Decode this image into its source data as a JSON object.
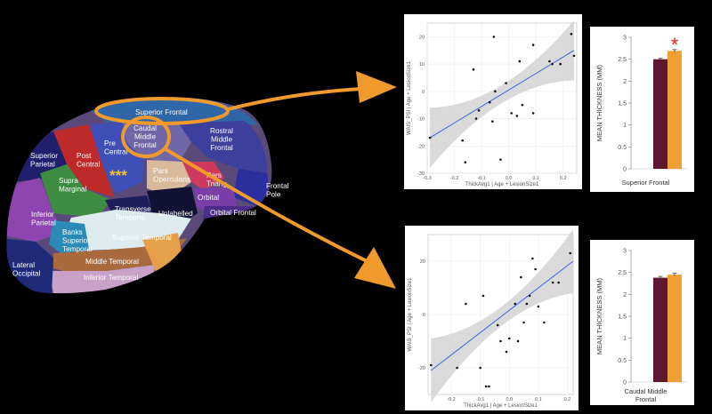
{
  "colors": {
    "arrow": "#F0992C",
    "bar_dark": "#5E1631",
    "bar_light": "#F0A030",
    "fit_line": "#3B63E0",
    "ci_band": "#D3D3D3",
    "star_red": "#E02020",
    "star_yellow": "#F4C430"
  },
  "brain": {
    "markers": [
      "***"
    ],
    "regions": [
      {
        "id": "superior-frontal",
        "lines": [
          "Superior Frontal"
        ]
      },
      {
        "id": "caudal-middle-frontal",
        "lines": [
          "Caudal",
          "Middle",
          "Frontal"
        ]
      },
      {
        "id": "rostral-middle-frontal",
        "lines": [
          "Rostral",
          "Middle",
          "Frontal"
        ]
      },
      {
        "id": "pre-central",
        "lines": [
          "Pre",
          "Central"
        ]
      },
      {
        "id": "post-central",
        "lines": [
          "Post",
          "Central"
        ]
      },
      {
        "id": "superior-parietal",
        "lines": [
          "Superior",
          "Parietal"
        ]
      },
      {
        "id": "supra-marginal",
        "lines": [
          "Supra",
          "Marginal"
        ]
      },
      {
        "id": "pars-opercularis",
        "lines": [
          "Pars",
          "Opercularis"
        ]
      },
      {
        "id": "pars-triangularis",
        "lines": [
          "Pars",
          "Triang"
        ]
      },
      {
        "id": "frontal-pole",
        "lines": [
          "Frontal",
          "Pole"
        ]
      },
      {
        "id": "orbital",
        "lines": [
          "Orbital"
        ]
      },
      {
        "id": "orbital-frontal",
        "lines": [
          "Orbital Frontal"
        ]
      },
      {
        "id": "transverse-temporal",
        "lines": [
          "Transverse",
          "Temporal"
        ]
      },
      {
        "id": "unlabelled",
        "lines": [
          "Unlabelled"
        ]
      },
      {
        "id": "inferior-parietal",
        "lines": [
          "Inferior",
          "Parietal"
        ]
      },
      {
        "id": "banks-superior-temporal",
        "lines": [
          "Banks",
          "Superior",
          "Temporal"
        ]
      },
      {
        "id": "superior-temporal",
        "lines": [
          "Superior Temporal"
        ]
      },
      {
        "id": "middle-temporal",
        "lines": [
          "Middle Temporal"
        ]
      },
      {
        "id": "lateral-occipital",
        "lines": [
          "Lateral",
          "Occipital"
        ]
      },
      {
        "id": "inferior-temporal",
        "lines": [
          "Inferior Temporal"
        ]
      }
    ]
  },
  "chart_data": [
    {
      "type": "scatter",
      "title": "",
      "xlabel": "ThickAvg1 | Age + LesionSize1",
      "ylabel": "WAIS_PSI | Age + LesionSize1",
      "xlim": [
        -0.3,
        0.25
      ],
      "ylim": [
        -30,
        25
      ],
      "xticks": [
        -0.3,
        -0.2,
        -0.1,
        0.0,
        0.1,
        0.2
      ],
      "xtick_labels": [
        "-0.3",
        "-0.2",
        "-0.1",
        "0.0",
        "0.1",
        "0.2"
      ],
      "yticks": [
        -30,
        -20,
        -10,
        0,
        10,
        20
      ],
      "ytick_labels": [
        "-30",
        "-20",
        "-10",
        "0",
        "10",
        "20"
      ],
      "grid": true,
      "fit_line": {
        "x": [
          -0.29,
          0.24
        ],
        "y": [
          -17,
          15
        ]
      },
      "points": [
        {
          "x": -0.29,
          "y": -17
        },
        {
          "x": -0.17,
          "y": -18
        },
        {
          "x": -0.16,
          "y": -26
        },
        {
          "x": -0.13,
          "y": 8
        },
        {
          "x": -0.12,
          "y": -10
        },
        {
          "x": -0.11,
          "y": -7
        },
        {
          "x": -0.07,
          "y": -4
        },
        {
          "x": -0.06,
          "y": -11
        },
        {
          "x": -0.055,
          "y": 20
        },
        {
          "x": -0.05,
          "y": 0
        },
        {
          "x": -0.03,
          "y": -25
        },
        {
          "x": -0.01,
          "y": 3
        },
        {
          "x": 0.01,
          "y": -8
        },
        {
          "x": 0.03,
          "y": -9
        },
        {
          "x": 0.04,
          "y": 11
        },
        {
          "x": 0.05,
          "y": -5
        },
        {
          "x": 0.09,
          "y": 17
        },
        {
          "x": 0.09,
          "y": -8
        },
        {
          "x": 0.15,
          "y": 11
        },
        {
          "x": 0.16,
          "y": 10
        },
        {
          "x": 0.19,
          "y": 10
        },
        {
          "x": 0.23,
          "y": 21
        },
        {
          "x": 0.24,
          "y": 13
        }
      ]
    },
    {
      "type": "bar",
      "title": "",
      "xlabel": "Superior Frontal",
      "ylabel": "MEAN THICKNESS (MM)",
      "ylim": [
        0,
        3
      ],
      "yticks": [
        0,
        0.5,
        1,
        1.5,
        2,
        2.5,
        3
      ],
      "ytick_labels": [
        "0",
        "0.5",
        "1",
        "1.5",
        "2",
        "2.5",
        "3"
      ],
      "values": [
        2.5,
        2.69
      ],
      "errors": [
        0.02,
        0.03
      ],
      "annotation": "*"
    },
    {
      "type": "scatter",
      "title": "",
      "xlabel": "ThickAvg1 | Age + LesionSize1",
      "ylabel": "WAIS_PSI | Age + LesionSize1",
      "xlim": [
        -0.28,
        0.22
      ],
      "ylim": [
        -30,
        30
      ],
      "xticks": [
        -0.2,
        -0.1,
        0.0,
        0.1,
        0.2
      ],
      "xtick_labels": [
        "-0.2",
        "-0.1",
        "0.0",
        "0.1",
        "0.2"
      ],
      "yticks": [
        -20,
        0,
        20
      ],
      "ytick_labels": [
        "-20",
        "0",
        "20"
      ],
      "grid": true,
      "fit_line": {
        "x": [
          -0.27,
          0.22
        ],
        "y": [
          -21,
          20
        ]
      },
      "points": [
        {
          "x": -0.27,
          "y": -19
        },
        {
          "x": -0.18,
          "y": -20
        },
        {
          "x": -0.15,
          "y": 4
        },
        {
          "x": -0.1,
          "y": -20
        },
        {
          "x": -0.08,
          "y": -27
        },
        {
          "x": -0.07,
          "y": -27
        },
        {
          "x": -0.09,
          "y": 7
        },
        {
          "x": -0.04,
          "y": -4
        },
        {
          "x": -0.03,
          "y": -10
        },
        {
          "x": -0.01,
          "y": -14
        },
        {
          "x": 0.0,
          "y": -9
        },
        {
          "x": 0.02,
          "y": 4
        },
        {
          "x": 0.03,
          "y": -10
        },
        {
          "x": 0.04,
          "y": 14
        },
        {
          "x": 0.05,
          "y": -3
        },
        {
          "x": 0.06,
          "y": 4
        },
        {
          "x": 0.07,
          "y": 7
        },
        {
          "x": 0.08,
          "y": 21
        },
        {
          "x": 0.09,
          "y": 17
        },
        {
          "x": 0.1,
          "y": 3
        },
        {
          "x": 0.12,
          "y": -3
        },
        {
          "x": 0.15,
          "y": 12
        },
        {
          "x": 0.17,
          "y": 12
        },
        {
          "x": 0.21,
          "y": 23
        }
      ]
    },
    {
      "type": "bar",
      "title": "",
      "xlabel": "Caudal Middle Frontal",
      "ylabel": "MEAN THICKNESS (MM)",
      "ylim": [
        0,
        3
      ],
      "yticks": [
        0,
        0.5,
        1,
        1.5,
        2,
        2.5,
        3
      ],
      "ytick_labels": [
        "0",
        "0.5",
        "1",
        "1.5",
        "2",
        "2.5",
        "3"
      ],
      "values": [
        2.38,
        2.45
      ],
      "errors": [
        0.03,
        0.03
      ]
    }
  ]
}
